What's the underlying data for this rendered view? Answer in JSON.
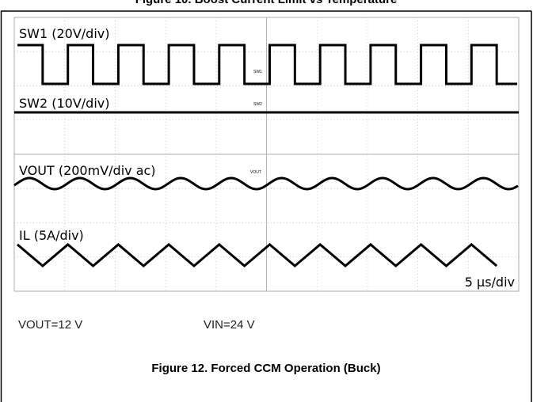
{
  "header": {
    "previous_caption": "Figure 10. Boost Current Limit vs Temperature"
  },
  "scope": {
    "channels": [
      {
        "label": "SW1 (20V/div)",
        "tag": "SW1"
      },
      {
        "label": "SW2 (10V/div)",
        "tag": "SW2"
      },
      {
        "label": "VOUT (200mV/div ac)",
        "tag": "VOUT"
      },
      {
        "label": "IL (5A/div)"
      }
    ],
    "timebase": "5 µs/div"
  },
  "conditions": [
    "VOUT=12 V",
    "VIN=24 V"
  ],
  "caption": "Figure 12. Forced CCM Operation (Buck)"
}
